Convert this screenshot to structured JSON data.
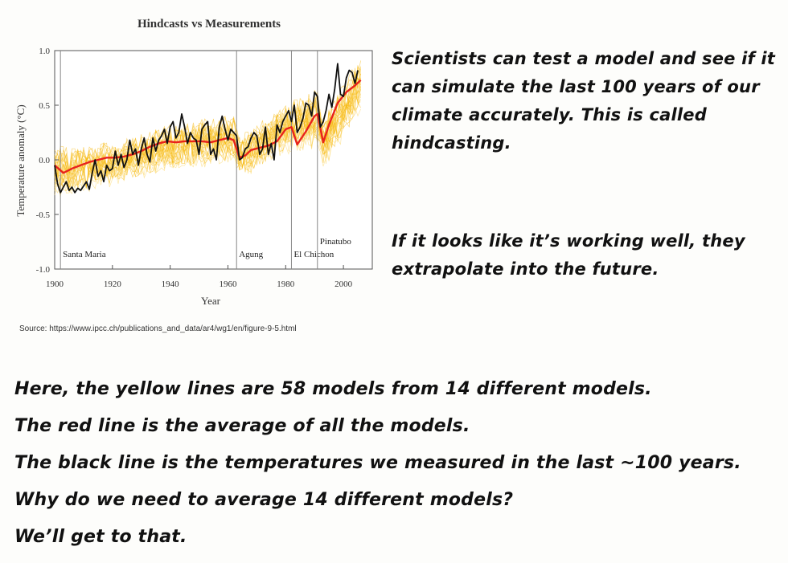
{
  "chart_data": {
    "type": "line",
    "title": "Hindcasts vs Measurements",
    "xlabel": "Year",
    "ylabel": "Temperature anomaly (°C)",
    "xlim": [
      1900,
      2010
    ],
    "ylim": [
      -1.0,
      1.0
    ],
    "xticks": [
      1900,
      1920,
      1940,
      1960,
      1980,
      2000
    ],
    "yticks": [
      -1.0,
      -0.5,
      0.0,
      0.5,
      1.0
    ],
    "ytick_labels": [
      "-1.0",
      "-0.5",
      "0.0",
      "0.5",
      "1.0"
    ],
    "grid": false,
    "events": [
      {
        "year": 1902,
        "label": "Santa Maria"
      },
      {
        "year": 1963,
        "label": "Agung"
      },
      {
        "year": 1982,
        "label": "El Chichon"
      },
      {
        "year": 1991,
        "label": "Pinatubo"
      }
    ],
    "series": [
      {
        "role": "model-average",
        "color": "#e8231c",
        "x": [
          1900,
          1903,
          1906,
          1909,
          1912,
          1915,
          1918,
          1921,
          1924,
          1927,
          1930,
          1933,
          1936,
          1939,
          1942,
          1945,
          1948,
          1951,
          1954,
          1957,
          1960,
          1962,
          1964,
          1966,
          1968,
          1971,
          1974,
          1977,
          1980,
          1982,
          1984,
          1987,
          1990,
          1991,
          1993,
          1995,
          1998,
          2001,
          2004,
          2006
        ],
        "y": [
          -0.05,
          -0.12,
          -0.08,
          -0.05,
          -0.02,
          0.0,
          0.02,
          0.02,
          0.03,
          0.05,
          0.08,
          0.12,
          0.15,
          0.17,
          0.16,
          0.17,
          0.17,
          0.17,
          0.16,
          0.18,
          0.2,
          0.18,
          0.02,
          0.04,
          0.09,
          0.11,
          0.13,
          0.17,
          0.28,
          0.3,
          0.14,
          0.26,
          0.4,
          0.42,
          0.16,
          0.32,
          0.52,
          0.62,
          0.68,
          0.73
        ]
      },
      {
        "role": "observations",
        "color": "#111111",
        "x": [
          1900,
          1901,
          1902,
          1903,
          1904,
          1905,
          1906,
          1907,
          1908,
          1909,
          1910,
          1911,
          1912,
          1913,
          1914,
          1915,
          1916,
          1917,
          1918,
          1919,
          1920,
          1921,
          1922,
          1923,
          1924,
          1925,
          1926,
          1927,
          1928,
          1929,
          1930,
          1931,
          1932,
          1933,
          1934,
          1935,
          1936,
          1937,
          1938,
          1939,
          1940,
          1941,
          1942,
          1943,
          1944,
          1945,
          1946,
          1947,
          1948,
          1949,
          1950,
          1951,
          1952,
          1953,
          1954,
          1955,
          1956,
          1957,
          1958,
          1959,
          1960,
          1961,
          1962,
          1963,
          1964,
          1965,
          1966,
          1967,
          1968,
          1969,
          1970,
          1971,
          1972,
          1973,
          1974,
          1975,
          1976,
          1977,
          1978,
          1979,
          1980,
          1981,
          1982,
          1983,
          1984,
          1985,
          1986,
          1987,
          1988,
          1989,
          1990,
          1991,
          1992,
          1993,
          1994,
          1995,
          1996,
          1997,
          1998,
          1999,
          2000,
          2001,
          2002,
          2003,
          2004,
          2005
        ],
        "y": [
          -0.05,
          -0.22,
          -0.3,
          -0.25,
          -0.2,
          -0.28,
          -0.25,
          -0.3,
          -0.26,
          -0.28,
          -0.24,
          -0.2,
          -0.27,
          -0.12,
          0.0,
          -0.15,
          -0.1,
          -0.2,
          -0.05,
          -0.1,
          -0.08,
          0.08,
          -0.05,
          0.05,
          -0.07,
          0.0,
          0.18,
          0.05,
          0.1,
          -0.05,
          0.1,
          0.2,
          0.05,
          -0.02,
          0.2,
          0.08,
          0.18,
          0.22,
          0.28,
          0.15,
          0.3,
          0.35,
          0.2,
          0.25,
          0.42,
          0.3,
          0.15,
          0.25,
          0.2,
          0.18,
          0.05,
          0.28,
          0.32,
          0.35,
          0.05,
          0.1,
          0.0,
          0.3,
          0.4,
          0.28,
          0.18,
          0.28,
          0.25,
          0.22,
          0.0,
          0.02,
          0.1,
          0.12,
          0.2,
          0.25,
          0.22,
          0.05,
          0.1,
          0.3,
          0.05,
          0.15,
          0.0,
          0.32,
          0.25,
          0.35,
          0.4,
          0.45,
          0.35,
          0.5,
          0.25,
          0.3,
          0.38,
          0.52,
          0.5,
          0.4,
          0.62,
          0.58,
          0.3,
          0.35,
          0.45,
          0.6,
          0.48,
          0.65,
          0.88,
          0.6,
          0.58,
          0.75,
          0.82,
          0.8,
          0.7,
          0.82
        ]
      }
    ],
    "ensemble": {
      "color": "#f5b400",
      "note_band": [
        [
          1900,
          -0.35,
          0.15
        ],
        [
          1920,
          -0.25,
          0.2
        ],
        [
          1940,
          -0.1,
          0.35
        ],
        [
          1962,
          -0.05,
          0.45
        ],
        [
          1964,
          -0.2,
          0.25
        ],
        [
          1980,
          0.05,
          0.55
        ],
        [
          1991,
          0.1,
          0.7
        ],
        [
          1993,
          -0.1,
          0.45
        ],
        [
          2006,
          0.4,
          1.0
        ]
      ]
    }
  },
  "source": "Source: https://www.ipcc.ch/publications_and_data/ar4/wg1/en/figure-9-5.html",
  "text": {
    "para1": "Scientists can test a model and see if it can simulate the last 100 years of our climate accurately. This is called hindcasting.",
    "para2": "If it looks like it’s working well, they extrapolate into the future.",
    "bottom": [
      "Here, the yellow lines are 58 models from 14 different models.",
      "The red line is the average of all the models.",
      "The black line is the temperatures we measured in the last ~100 years.",
      "Why do we need to average 14 different models?",
      "We’ll get to that."
    ]
  }
}
